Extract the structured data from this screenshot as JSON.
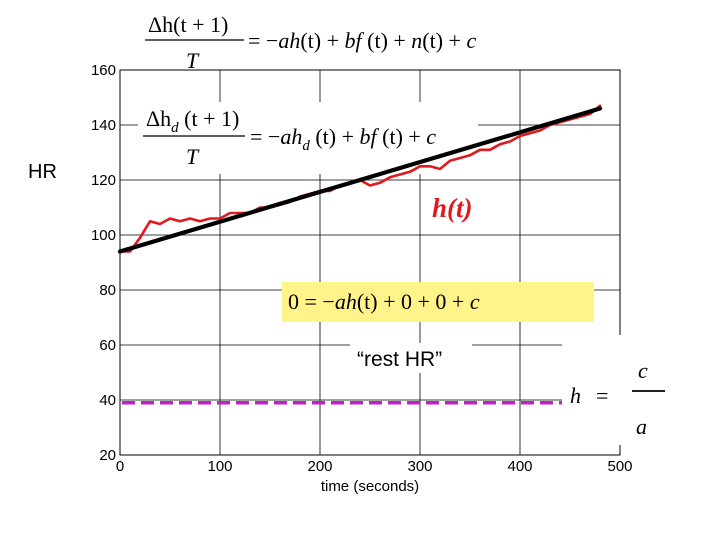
{
  "chart_data": {
    "type": "line",
    "xlabel": "time (seconds)",
    "ylabel": "HR",
    "xlim": [
      0,
      500
    ],
    "ylim": [
      20,
      160
    ],
    "xticks": [
      "0",
      "100",
      "200",
      "300",
      "400",
      "500"
    ],
    "yticks": [
      "20",
      "40",
      "60",
      "80",
      "100",
      "120",
      "140",
      "160"
    ],
    "grid": true,
    "series": [
      {
        "color": "#e0191e",
        "x": [
          0,
          10,
          20,
          30,
          40,
          50,
          60,
          70,
          80,
          90,
          100,
          110,
          120,
          130,
          140,
          150,
          160,
          170,
          180,
          190,
          200,
          210,
          220,
          230,
          240,
          250,
          260,
          270,
          280,
          290,
          300,
          310,
          320,
          330,
          340,
          350,
          360,
          370,
          380,
          390,
          400,
          410,
          420,
          430,
          440,
          450,
          460,
          470,
          480
        ],
        "values": [
          94,
          94,
          99,
          105,
          104,
          106,
          105,
          106,
          105,
          106,
          106,
          108,
          108,
          108,
          110,
          110,
          111,
          112,
          114,
          115,
          116,
          116,
          118,
          119,
          120,
          118,
          119,
          121,
          122,
          123,
          125,
          125,
          124,
          127,
          128,
          129,
          131,
          131,
          133,
          134,
          136,
          137,
          138,
          140,
          141,
          142,
          143,
          144,
          147
        ]
      },
      {
        "color": "#000000",
        "x": [
          0,
          480
        ],
        "values": [
          94,
          146
        ]
      }
    ],
    "reference_line": {
      "value": 39,
      "x_range": [
        0,
        500
      ],
      "color": "#c020c8",
      "style": "dashed"
    },
    "annotations": {
      "ht": "h(t)",
      "rest_hr": "“rest HR”"
    }
  },
  "equations": {
    "eq1": {
      "num": "Δh(t + 1)",
      "den": "T",
      "rhs_pre": "= −",
      "rhs_a": "ah",
      "rhs_mid1": "(t) + ",
      "rhs_bf": "bf",
      "rhs_mid2": " (t) + ",
      "rhs_n": "n",
      "rhs_mid3": "(t) + ",
      "rhs_c": "c"
    },
    "eq2": {
      "num_pre": "Δh",
      "num_sub": "d",
      "num_post": " (t + 1)",
      "den": "T",
      "rhs_pre": "= −",
      "rhs_a": "ah",
      "rhs_sub": "d",
      "rhs_mid1": " (t) + ",
      "rhs_bf": "bf",
      "rhs_mid2": " (t) + ",
      "rhs_c": "c"
    },
    "eq3": {
      "lhs": "0 = −",
      "a": "ah",
      "mid": "(t) + 0 + 0 + ",
      "c": "c",
      "bg": "#fff38a"
    },
    "eq4": {
      "h": "h",
      "eq": "=",
      "num": "c",
      "den": "a"
    }
  }
}
